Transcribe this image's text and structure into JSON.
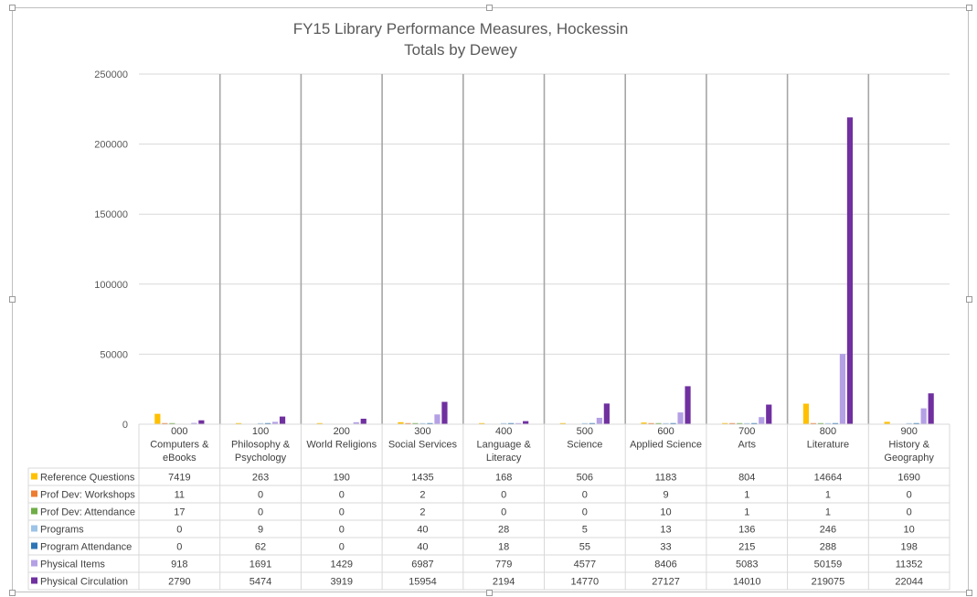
{
  "chart_data": {
    "type": "bar",
    "title": "FY15 Library Performance Measures, Hockessin",
    "subtitle": "Totals by Dewey",
    "ylim": [
      0,
      250000
    ],
    "yticks": [
      "0",
      "50000",
      "100000",
      "150000",
      "200000",
      "250000"
    ],
    "categories": [
      [
        "000",
        "Computers &",
        "eBooks"
      ],
      [
        "100",
        "Philosophy &",
        "Psychology"
      ],
      [
        "200",
        "World Religions"
      ],
      [
        "300",
        "Social Services"
      ],
      [
        "400",
        "Language &",
        "Literacy"
      ],
      [
        "500",
        "Science"
      ],
      [
        "600",
        "Applied Science"
      ],
      [
        "700",
        "Arts"
      ],
      [
        "800",
        "Literature"
      ],
      [
        "900",
        "History &",
        "Geography"
      ]
    ],
    "series": [
      {
        "name": "Reference Questions",
        "color": "#FFC000",
        "values": [
          7419,
          263,
          190,
          1435,
          168,
          506,
          1183,
          804,
          14664,
          1690
        ]
      },
      {
        "name": "Prof Dev: Workshops",
        "color": "#ED7D31",
        "values": [
          11,
          0,
          0,
          2,
          0,
          0,
          9,
          1,
          1,
          0
        ]
      },
      {
        "name": "Prof Dev: Attendance",
        "color": "#70AD47",
        "values": [
          17,
          0,
          0,
          2,
          0,
          0,
          10,
          1,
          1,
          0
        ]
      },
      {
        "name": "Programs",
        "color": "#9DC3E6",
        "values": [
          0,
          9,
          0,
          40,
          28,
          5,
          13,
          136,
          246,
          10
        ]
      },
      {
        "name": "Program Attendance",
        "color": "#2E75B6",
        "values": [
          0,
          62,
          0,
          40,
          18,
          55,
          33,
          215,
          288,
          198
        ]
      },
      {
        "name": "Physical Items",
        "color": "#B4A0E5",
        "values": [
          918,
          1691,
          1429,
          6987,
          779,
          4577,
          8406,
          5083,
          50159,
          11352
        ]
      },
      {
        "name": "Physical Circulation",
        "color": "#7030A0",
        "values": [
          2790,
          5474,
          3919,
          15954,
          2194,
          14770,
          27127,
          14010,
          219075,
          22044
        ]
      }
    ],
    "grid": true,
    "legend": "data-table"
  }
}
